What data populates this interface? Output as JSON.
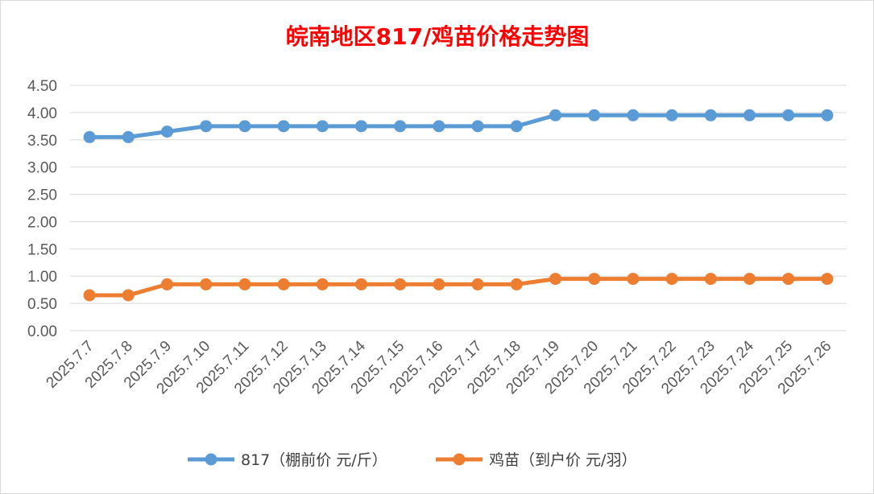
{
  "chart_data": {
    "type": "line",
    "title": "皖南地区817/鸡苗价格走势图",
    "categories": [
      "2025.7.7",
      "2025.7.8",
      "2025.7.9",
      "2025.7.10",
      "2025.7.11",
      "2025.7.12",
      "2025.7.13",
      "2025.7.14",
      "2025.7.15",
      "2025.7.16",
      "2025.7.17",
      "2025.7.18",
      "2025.7.19",
      "2025.7.20",
      "2025.7.21",
      "2025.7.22",
      "2025.7.23",
      "2025.7.24",
      "2025.7.25",
      "2025.7.26"
    ],
    "series": [
      {
        "name": "817（棚前价 元/斤）",
        "color": "#5b9bd5",
        "values": [
          3.55,
          3.55,
          3.65,
          3.75,
          3.75,
          3.75,
          3.75,
          3.75,
          3.75,
          3.75,
          3.75,
          3.75,
          3.95,
          3.95,
          3.95,
          3.95,
          3.95,
          3.95,
          3.95,
          3.95
        ]
      },
      {
        "name": "鸡苗（到户价 元/羽）",
        "color": "#ed7d31",
        "values": [
          0.65,
          0.65,
          0.85,
          0.85,
          0.85,
          0.85,
          0.85,
          0.85,
          0.85,
          0.85,
          0.85,
          0.85,
          0.95,
          0.95,
          0.95,
          0.95,
          0.95,
          0.95,
          0.95,
          0.95
        ]
      }
    ],
    "yticks": [
      "0.00",
      "0.50",
      "1.00",
      "1.50",
      "2.00",
      "2.50",
      "3.00",
      "3.50",
      "4.00",
      "4.50"
    ],
    "ylim": [
      0,
      4.5
    ],
    "xlabel": "",
    "ylabel": "",
    "grid": true,
    "legend_position": "bottom"
  }
}
